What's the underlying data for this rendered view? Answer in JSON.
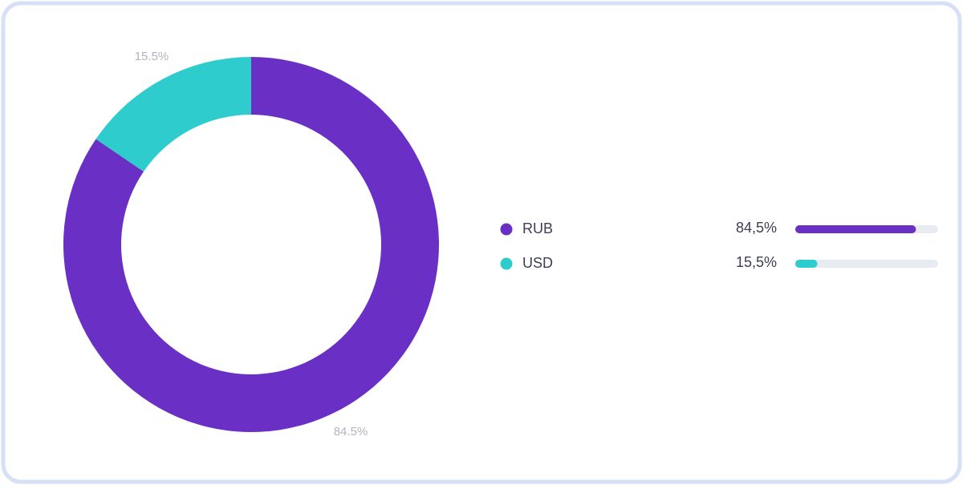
{
  "chart_data": {
    "type": "donut",
    "categories": [
      "RUB",
      "USD"
    ],
    "values": [
      84.5,
      15.5
    ],
    "value_labels": [
      "84.5%",
      "15.5%"
    ],
    "legend_value_labels": [
      "84,5%",
      "15,5%"
    ],
    "colors": [
      "#6a2fc4",
      "#2ecccc"
    ]
  }
}
